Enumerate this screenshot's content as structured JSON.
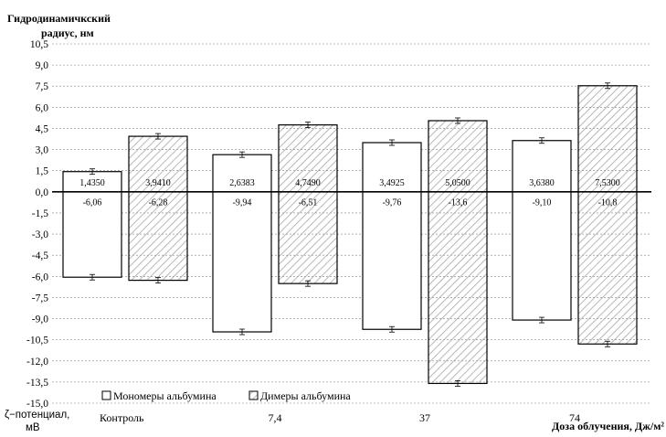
{
  "chart_data": {
    "type": "bar",
    "ylabel": "Гидродинамичкский радиус, нм",
    "ylabel_lines": [
      "Гидродинамичкский",
      "радиус, нм"
    ],
    "y2label_lines": [
      "ζ−потенциал,",
      "мВ"
    ],
    "xlabel": "Доза облучения,  Дж/м²",
    "categories": [
      "Контроль",
      "7,4",
      "37",
      "74"
    ],
    "ylim": [
      -15,
      10.5
    ],
    "yticks": [
      "10,5",
      "9,0",
      "7,5",
      "6,0",
      "4,5",
      "3,0",
      "1,5",
      "0,0",
      "-1,5",
      "-3,0",
      "-4,5",
      "-6,0",
      "-7,5",
      "-9,0",
      "-10,5",
      "-12,0",
      "-13,5",
      "-15,0"
    ],
    "grid": "horizontal dashed",
    "legend_position": "bottom-left",
    "series": [
      {
        "name": "Мономеры альбумина",
        "fill": "plain",
        "radius": [
          1.435,
          2.6383,
          3.4925,
          3.638
        ],
        "radius_labels": [
          "1,4350",
          "2,6383",
          "3,4925",
          "3,6380"
        ],
        "zeta": [
          -6.06,
          -9.94,
          -9.76,
          -9.1
        ],
        "zeta_labels": [
          "-6,06",
          "-9,94",
          "-9,76",
          "-9,10"
        ]
      },
      {
        "name": "Димеры альбумина",
        "fill": "hatched",
        "radius": [
          3.941,
          4.749,
          5.05,
          7.53
        ],
        "radius_labels": [
          "3,9410",
          "4,7490",
          "5,0500",
          "7,5300"
        ],
        "zeta": [
          -6.28,
          -6.51,
          -13.6,
          -10.8
        ],
        "zeta_labels": [
          "-6,28",
          "-6,51",
          "-13,6",
          "-10,8"
        ]
      }
    ]
  },
  "colors": {
    "bar_stroke": "#000000",
    "hatch": "#a6a6a6",
    "grid": "#808080",
    "axis": "#000000"
  }
}
